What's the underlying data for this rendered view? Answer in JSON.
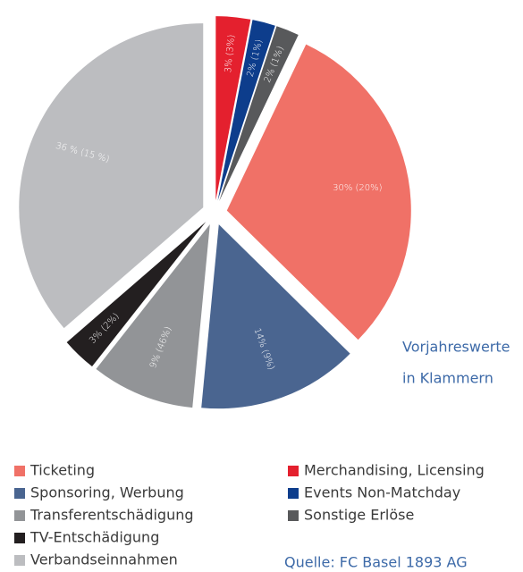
{
  "chart_data": {
    "type": "pie",
    "categories": [
      "Merchandising, Licensing",
      "Events Non-Matchday",
      "Sonstige Erlöse",
      "Ticketing",
      "Sponsoring, Werbung",
      "Transferentschädigung",
      "TV-Entschädigung",
      "Verbandseinnahmen"
    ],
    "values": [
      3,
      2,
      2,
      30,
      14,
      9,
      3,
      36
    ],
    "value_labels": [
      "3% (3%)",
      "2% (1%)",
      "2% (1%)",
      "30% (20%)",
      "14% (9%)",
      "9% (46%)",
      "3% (2%)",
      "36 % (15 %)"
    ],
    "colors": [
      "#e4202e",
      "#0d3d8c",
      "#58595b",
      "#f07167",
      "#4a6590",
      "#929497",
      "#231f20",
      "#bcbdc0"
    ],
    "annotations": [
      "Vorjahreswerte",
      "in Klammern"
    ],
    "source": "Quelle: FC Basel 1893 AG"
  }
}
